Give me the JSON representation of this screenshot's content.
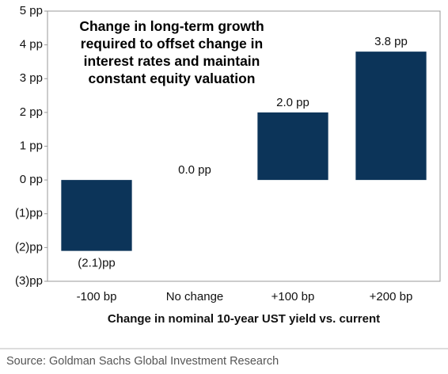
{
  "chart_data": {
    "type": "bar",
    "title": "Change in long-term growth required to offset change in interest rates and maintain constant equity valuation",
    "categories": [
      "-100 bp",
      "No change",
      "+100 bp",
      "+200 bp"
    ],
    "values": [
      -2.1,
      0.0,
      2.0,
      3.8
    ],
    "value_labels": [
      "(2.1)pp",
      "0.0 pp",
      "2.0 pp",
      "3.8 pp"
    ],
    "color": "#0c3459",
    "ylim": [
      -3,
      5
    ],
    "yticks": [
      {
        "value": 5,
        "label": "5 pp"
      },
      {
        "value": 4,
        "label": "4 pp"
      },
      {
        "value": 3,
        "label": "3 pp"
      },
      {
        "value": 2,
        "label": "2 pp"
      },
      {
        "value": 1,
        "label": "1 pp"
      },
      {
        "value": 0,
        "label": "0 pp"
      },
      {
        "value": -1,
        "label": "(1)pp"
      },
      {
        "value": -2,
        "label": "(2)pp"
      },
      {
        "value": -3,
        "label": "(3)pp"
      }
    ],
    "xlabel": "Change in nominal 10-year UST yield vs. current",
    "source": "Source: Goldman Sachs Global Investment Research",
    "grid": false
  }
}
